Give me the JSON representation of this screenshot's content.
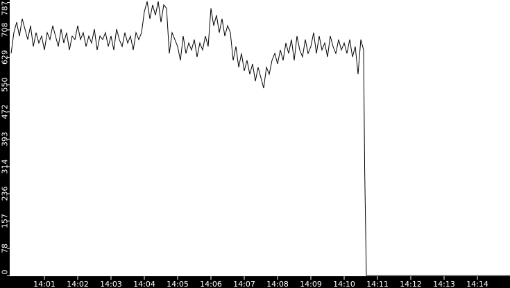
{
  "chart_data": {
    "type": "line",
    "title": "",
    "xlabel": "",
    "ylabel": "",
    "ylim": [
      0,
      787
    ],
    "xlim": [
      "14:00:00",
      "14:15:00"
    ],
    "grid": false,
    "y_ticks": [
      "0",
      "78",
      "157",
      "236",
      "314",
      "393",
      "472",
      "550",
      "629",
      "708",
      "787"
    ],
    "x_ticks": [
      "14:01",
      "14:02",
      "14:03",
      "14:04",
      "14:05",
      "14:06",
      "14:07",
      "14:08",
      "14:09",
      "14:10",
      "14:11",
      "14:12",
      "14:13",
      "14:14"
    ],
    "colors": {
      "background": "#000000",
      "plot_area": "#ffffff",
      "line": "#000000",
      "axis_text": "#ffffff"
    },
    "interval_seconds": 5,
    "start_time": "14:00:00",
    "values": [
      640,
      700,
      730,
      690,
      740,
      710,
      680,
      720,
      660,
      700,
      670,
      690,
      650,
      700,
      680,
      720,
      690,
      660,
      710,
      670,
      700,
      650,
      690,
      680,
      720,
      680,
      700,
      660,
      690,
      670,
      710,
      650,
      690,
      680,
      700,
      660,
      690,
      650,
      710,
      680,
      660,
      700,
      670,
      690,
      650,
      700,
      680,
      700,
      760,
      790,
      740,
      780,
      750,
      790,
      730,
      780,
      770,
      640,
      700,
      680,
      660,
      620,
      690,
      640,
      670,
      650,
      680,
      630,
      670,
      650,
      690,
      660,
      770,
      720,
      750,
      700,
      740,
      690,
      720,
      700,
      620,
      660,
      600,
      640,
      590,
      620,
      580,
      610,
      560,
      600,
      570,
      540,
      600,
      580,
      620,
      640,
      610,
      650,
      620,
      670,
      640,
      680,
      620,
      690,
      650,
      630,
      680,
      640,
      660,
      700,
      640,
      690,
      650,
      670,
      630,
      690,
      660,
      640,
      680,
      650,
      670,
      640,
      680,
      630,
      660,
      580,
      680,
      650
    ],
    "tail": [
      {
        "t": "14:10:37",
        "v": 300
      },
      {
        "t": "14:10:40",
        "v": 0
      },
      {
        "t": "14:15:00",
        "v": 0
      }
    ]
  }
}
